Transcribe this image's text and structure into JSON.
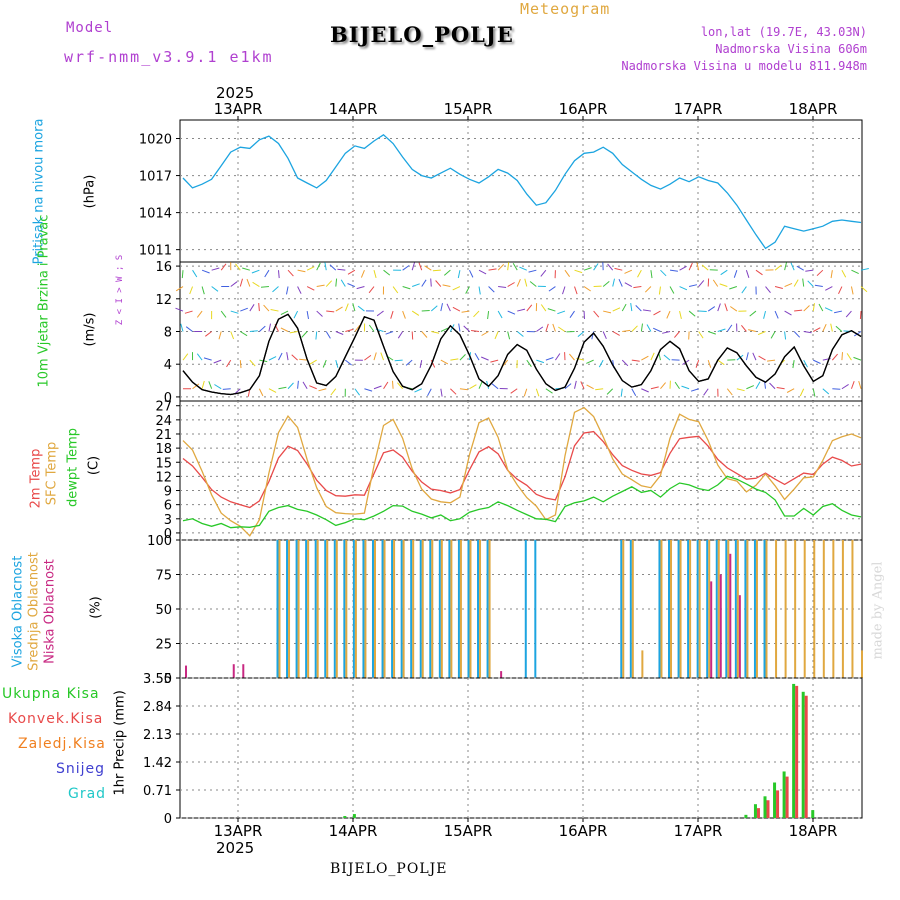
{
  "header": {
    "model_label": "Model",
    "model_value": "wrf-nmm_v3.9.1 e1km",
    "app_label": "Meteogram",
    "station_title": "BIJELO_POLJE",
    "lonlat": "lon,lat (19.7E, 43.03N)",
    "elevation": "Nadmorska Visina 606m",
    "model_elevation": "Nadmorska Visina u modelu 811.948m",
    "year_top": "2025",
    "year_bottom": "2025",
    "footer_station": "BIJELO_POLJE",
    "watermark": "made by Angel"
  },
  "colors": {
    "pressure": "#1ca4e0",
    "temp2m": "#e84a4a",
    "sfc_temp": "#e0a840",
    "dewpoint": "#28c828",
    "high_cloud": "#1ca4e0",
    "mid_cloud": "#e0a840",
    "low_cloud": "#c82882",
    "total_precip": "#28c828",
    "conv_precip": "#e84a4a",
    "frozen_precip": "#f08020",
    "snow": "#4040d0",
    "hail": "#20c8c8",
    "model_label": "#b040d0",
    "station_info": "#b040d0",
    "meteogram": "#e0a840"
  },
  "chart_data": [
    {
      "type": "line",
      "panel": "pressure",
      "ylabel_name": "Pritisak na nivou mora",
      "ylabel_unit": "(hPa)",
      "x_ticks": [
        "13APR",
        "14APR",
        "15APR",
        "16APR",
        "17APR",
        "18APR"
      ],
      "y_ticks": [
        1011,
        1014,
        1017,
        1020
      ],
      "ylim": [
        1010,
        1021.5
      ],
      "grid": true,
      "series": [
        {
          "name": "Pritisak na nivou mora",
          "color": "#1ca4e0",
          "values": [
            1016.8,
            1016.0,
            1016.3,
            1016.7,
            1017.8,
            1018.9,
            1019.3,
            1019.2,
            1019.9,
            1020.2,
            1019.6,
            1018.4,
            1016.8,
            1016.4,
            1016.0,
            1016.6,
            1017.7,
            1018.8,
            1019.4,
            1019.2,
            1019.8,
            1020.3,
            1019.6,
            1018.5,
            1017.5,
            1017.0,
            1016.8,
            1017.2,
            1017.6,
            1017.1,
            1016.7,
            1016.4,
            1016.9,
            1017.5,
            1017.2,
            1016.6,
            1015.5,
            1014.6,
            1014.8,
            1015.8,
            1017.1,
            1018.2,
            1018.8,
            1018.9,
            1019.3,
            1018.8,
            1017.9,
            1017.3,
            1016.7,
            1016.2,
            1015.9,
            1016.3,
            1016.8,
            1016.5,
            1016.9,
            1016.6,
            1016.4,
            1015.6,
            1014.6,
            1013.4,
            1012.2,
            1011.1,
            1011.6,
            1012.9,
            1012.7,
            1012.5,
            1012.7,
            1012.9,
            1013.3,
            1013.4,
            1013.3,
            1013.2
          ]
        }
      ]
    },
    {
      "type": "line",
      "panel": "wind",
      "ylabel_name": "10m Vjetar Brzina i Pravac",
      "ylabel_unit": "(m/s)",
      "compass_note": "Z < I > W ; S",
      "y_ticks": [
        0,
        4,
        8,
        12,
        16
      ],
      "ylim": [
        -0.5,
        16.5
      ],
      "grid": true,
      "series": [
        {
          "name": "10m Vjetar",
          "color": "#000000",
          "values": [
            3.2,
            1.8,
            0.9,
            0.6,
            0.4,
            0.3,
            0.5,
            0.9,
            2.6,
            6.8,
            9.5,
            10.1,
            8.4,
            4.6,
            1.7,
            1.4,
            2.5,
            4.9,
            7.3,
            9.8,
            9.4,
            6.2,
            3.1,
            1.3,
            0.9,
            1.6,
            3.9,
            7.1,
            8.7,
            7.6,
            5.1,
            2.2,
            1.3,
            2.6,
            5.2,
            6.4,
            5.7,
            3.4,
            1.6,
            0.8,
            1.2,
            3.5,
            6.7,
            7.8,
            6.2,
            3.9,
            2.0,
            1.2,
            1.5,
            3.2,
            5.8,
            6.8,
            5.9,
            3.2,
            1.9,
            2.2,
            4.5,
            6.0,
            5.4,
            3.8,
            2.4,
            1.8,
            2.8,
            4.9,
            6.1,
            3.8,
            1.9,
            2.6,
            5.8,
            7.6,
            8.1,
            7.4
          ]
        }
      ]
    },
    {
      "type": "line",
      "panel": "temperature",
      "ylabel_name": "2m Temp",
      "ylabel_name2": "SFC Temp",
      "ylabel_name3": "dewpt Temp",
      "ylabel_unit": "(C)",
      "y_ticks": [
        0,
        3,
        6,
        9,
        12,
        15,
        18,
        21,
        24,
        27
      ],
      "ylim": [
        -1.5,
        28
      ],
      "grid": true,
      "series": [
        {
          "name": "2m Temp",
          "color": "#e84a4a",
          "values": [
            15.8,
            14.2,
            11.8,
            9.2,
            7.6,
            6.6,
            6.0,
            5.4,
            6.8,
            10.9,
            15.9,
            18.4,
            17.5,
            14.6,
            11.2,
            9.0,
            7.9,
            7.8,
            8.1,
            8.0,
            12.6,
            17.0,
            17.6,
            16.1,
            13.1,
            10.8,
            9.3,
            9.0,
            8.5,
            9.2,
            13.4,
            17.2,
            18.3,
            16.8,
            13.3,
            11.4,
            10.1,
            8.2,
            7.4,
            7.0,
            11.9,
            18.5,
            21.2,
            21.5,
            19.4,
            16.6,
            14.3,
            13.3,
            12.5,
            12.2,
            12.8,
            16.9,
            20.0,
            20.3,
            20.5,
            18.4,
            15.6,
            13.8,
            12.6,
            11.4,
            11.6,
            12.7,
            11.4,
            10.3,
            11.5,
            12.7,
            12.4,
            14.6,
            16.1,
            15.4,
            14.2,
            14.6
          ]
        },
        {
          "name": "SFC Temp",
          "color": "#e0a840",
          "values": [
            19.6,
            17.6,
            13.1,
            8.1,
            4.2,
            2.6,
            1.4,
            -0.6,
            2.8,
            12.7,
            21.3,
            24.8,
            22.4,
            15.6,
            9.6,
            5.6,
            4.3,
            4.1,
            4.0,
            4.2,
            14.3,
            22.8,
            24.1,
            20.1,
            13.6,
            9.3,
            7.2,
            6.6,
            6.4,
            7.6,
            16.6,
            23.4,
            24.4,
            20.3,
            13.4,
            10.2,
            7.5,
            5.7,
            2.8,
            3.8,
            16.4,
            25.6,
            26.6,
            24.7,
            20.4,
            15.7,
            12.5,
            11.3,
            10.0,
            9.6,
            12.2,
            20.1,
            25.2,
            24.1,
            23.6,
            19.6,
            14.4,
            11.5,
            11.0,
            8.7,
            10.1,
            12.5,
            10.0,
            7.1,
            9.3,
            11.7,
            11.9,
            15.4,
            19.6,
            20.4,
            21.0,
            20.2
          ]
        },
        {
          "name": "dewpt Temp",
          "color": "#28c828",
          "values": [
            2.6,
            3.0,
            2.0,
            1.4,
            2.0,
            1.1,
            1.3,
            1.2,
            1.6,
            4.6,
            5.4,
            5.8,
            5.0,
            4.6,
            3.8,
            2.8,
            1.6,
            2.2,
            3.0,
            2.8,
            3.6,
            4.6,
            5.8,
            5.7,
            4.6,
            4.0,
            3.2,
            3.8,
            2.6,
            3.0,
            4.4,
            5.0,
            5.4,
            6.6,
            5.8,
            4.8,
            3.9,
            3.0,
            2.9,
            2.4,
            5.6,
            6.4,
            6.8,
            7.6,
            6.6,
            7.8,
            8.8,
            9.8,
            8.6,
            9.0,
            7.6,
            9.4,
            10.6,
            10.2,
            9.4,
            9.0,
            10.2,
            12.0,
            11.4,
            10.4,
            9.3,
            8.6,
            7.0,
            3.6,
            3.6,
            5.2,
            3.8,
            5.6,
            6.2,
            4.8,
            3.8,
            3.4
          ]
        }
      ]
    },
    {
      "type": "bar",
      "panel": "clouds",
      "ylabel_name": "Visoka Oblacnost",
      "ylabel_name2": "Srednja Oblacnost",
      "ylabel_name3": "Niska Oblacnost",
      "ylabel_unit": "(%)",
      "y_ticks": [
        0,
        25,
        50,
        75,
        100
      ],
      "ylim": [
        0,
        100
      ],
      "grid": true,
      "series": [
        {
          "name": "Visoka Oblacnost",
          "color": "#1ca4e0",
          "values": [
            0,
            0,
            0,
            0,
            0,
            0,
            0,
            0,
            0,
            0,
            100,
            100,
            100,
            100,
            100,
            100,
            100,
            100,
            100,
            100,
            100,
            100,
            100,
            100,
            100,
            100,
            100,
            100,
            100,
            100,
            100,
            100,
            100,
            0,
            0,
            0,
            100,
            100,
            0,
            0,
            0,
            0,
            0,
            0,
            0,
            0,
            100,
            100,
            0,
            0,
            100,
            100,
            100,
            100,
            100,
            100,
            100,
            100,
            100,
            100,
            100,
            100,
            0,
            0,
            0,
            0,
            0,
            0,
            0,
            0,
            0,
            0
          ]
        },
        {
          "name": "Srednja Oblacnost",
          "color": "#e0a840",
          "values": [
            0,
            0,
            0,
            0,
            0,
            0,
            0,
            0,
            0,
            0,
            100,
            100,
            100,
            100,
            100,
            100,
            100,
            100,
            100,
            100,
            100,
            100,
            100,
            100,
            100,
            100,
            100,
            100,
            100,
            100,
            100,
            100,
            100,
            0,
            0,
            0,
            0,
            0,
            0,
            0,
            0,
            0,
            0,
            0,
            0,
            0,
            100,
            100,
            20,
            0,
            100,
            100,
            100,
            100,
            100,
            100,
            100,
            100,
            100,
            100,
            100,
            100,
            100,
            100,
            100,
            100,
            100,
            100,
            100,
            100,
            100,
            20
          ]
        },
        {
          "name": "Niska Oblacnost",
          "color": "#c82882",
          "values": [
            9,
            0,
            0,
            0,
            0,
            10,
            10,
            0,
            0,
            0,
            0,
            0,
            0,
            0,
            0,
            0,
            0,
            0,
            0,
            0,
            0,
            0,
            0,
            0,
            0,
            0,
            0,
            0,
            0,
            0,
            0,
            0,
            0,
            5,
            0,
            0,
            0,
            0,
            0,
            0,
            0,
            0,
            0,
            0,
            0,
            0,
            0,
            0,
            0,
            0,
            0,
            0,
            0,
            0,
            0,
            70,
            75,
            90,
            60,
            0,
            0,
            0,
            0,
            0,
            0,
            0,
            0,
            0,
            0,
            0,
            0,
            0
          ]
        }
      ]
    },
    {
      "type": "bar",
      "panel": "precipitation",
      "ylabel_name": "1hr Precip",
      "ylabel_unit": "(mm)",
      "legend": [
        "Ukupna Kisa",
        "Konvek.Kisa",
        "Zaledj.Kisa",
        "Snijeg",
        "Grad"
      ],
      "y_ticks": [
        0,
        0.71,
        1.42,
        2.13,
        2.84,
        3.55
      ],
      "ylim": [
        0,
        3.55
      ],
      "grid": true,
      "series": [
        {
          "name": "Ukupna Kisa",
          "color": "#28c828",
          "values": [
            0,
            0,
            0,
            0,
            0,
            0,
            0,
            0,
            0,
            0,
            0,
            0,
            0,
            0,
            0,
            0,
            0,
            0.05,
            0.1,
            0,
            0,
            0,
            0,
            0,
            0,
            0,
            0,
            0,
            0,
            0,
            0,
            0,
            0,
            0,
            0,
            0,
            0,
            0,
            0,
            0,
            0,
            0,
            0,
            0,
            0,
            0,
            0,
            0,
            0,
            0,
            0,
            0,
            0,
            0,
            0,
            0,
            0,
            0,
            0,
            0.08,
            0.35,
            0.55,
            0.9,
            1.18,
            3.4,
            3.2,
            0.2,
            0,
            0,
            0,
            0,
            0
          ]
        },
        {
          "name": "Konvek.Kisa",
          "color": "#e84a4a",
          "values": [
            0,
            0,
            0,
            0,
            0,
            0,
            0,
            0,
            0,
            0,
            0,
            0,
            0,
            0,
            0,
            0,
            0,
            0,
            0,
            0,
            0,
            0,
            0,
            0,
            0,
            0,
            0,
            0,
            0,
            0,
            0,
            0,
            0,
            0,
            0,
            0,
            0,
            0,
            0,
            0,
            0,
            0,
            0,
            0,
            0,
            0,
            0,
            0,
            0,
            0,
            0,
            0,
            0,
            0,
            0,
            0,
            0,
            0,
            0,
            0,
            0.25,
            0.45,
            0.7,
            1.05,
            3.35,
            3.1,
            0,
            0,
            0,
            0,
            0,
            0
          ]
        }
      ]
    }
  ]
}
